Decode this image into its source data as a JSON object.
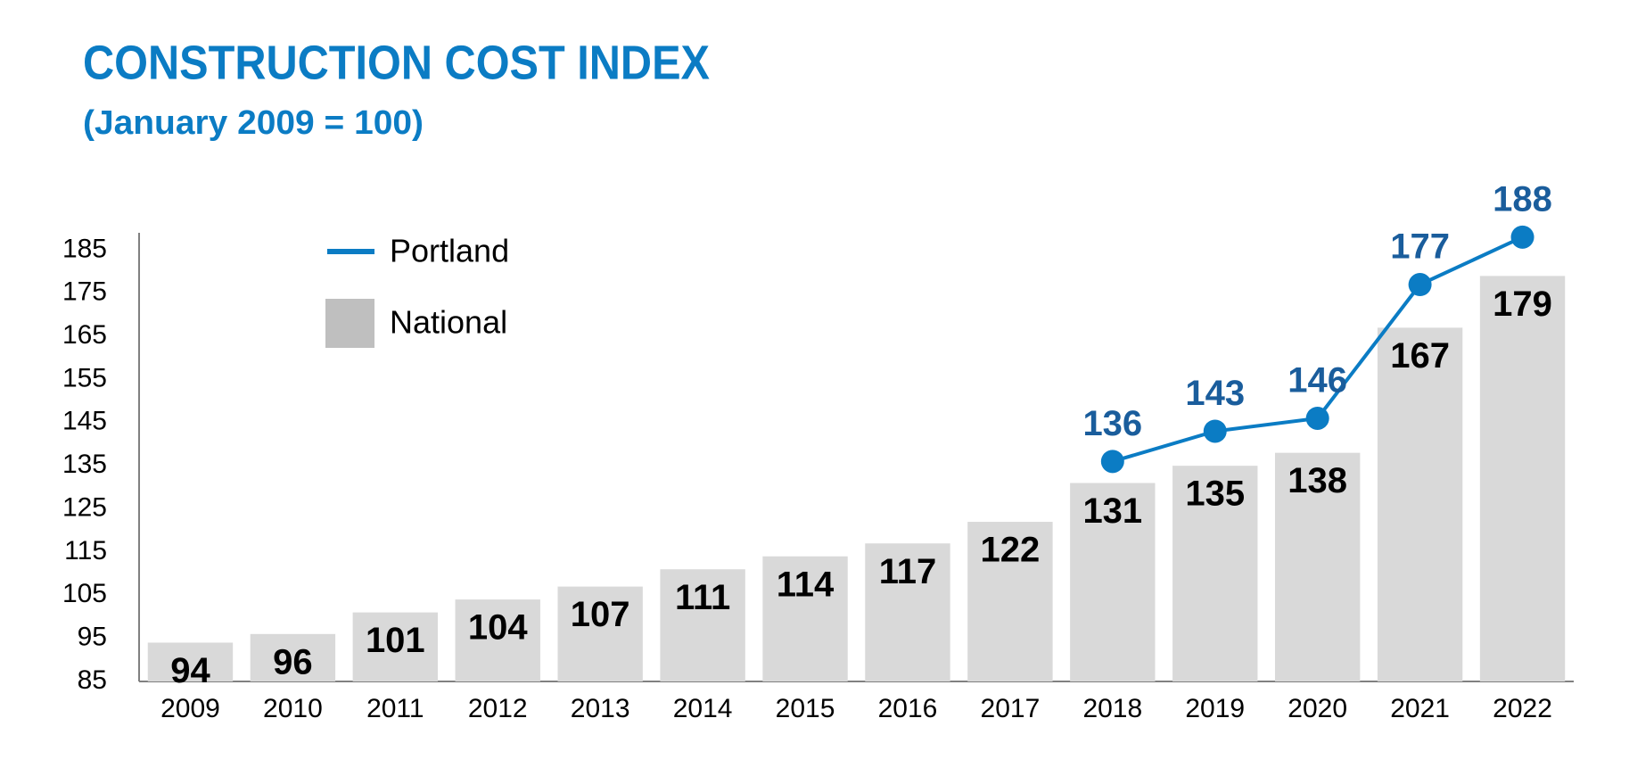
{
  "chart_data": {
    "type": "bar",
    "title": "CONSTRUCTION COST INDEX",
    "subtitle": "(January 2009 = 100)",
    "categories": [
      "2009",
      "2010",
      "2011",
      "2012",
      "2013",
      "2014",
      "2015",
      "2016",
      "2017",
      "2018",
      "2019",
      "2020",
      "2021",
      "2022"
    ],
    "series": [
      {
        "name": "Portland",
        "type": "line",
        "color": "#0b7cc4",
        "values": [
          null,
          null,
          null,
          null,
          null,
          null,
          null,
          null,
          null,
          136,
          143,
          146,
          177,
          188
        ]
      },
      {
        "name": "National",
        "type": "bar",
        "color": "#d9d9d9",
        "values": [
          94,
          96,
          101,
          104,
          107,
          111,
          114,
          117,
          122,
          131,
          135,
          138,
          167,
          179
        ]
      }
    ],
    "ylim": [
      85,
      189
    ],
    "yticks": [
      85,
      95,
      105,
      115,
      125,
      135,
      145,
      155,
      165,
      175,
      185
    ],
    "legend": "top-left"
  }
}
